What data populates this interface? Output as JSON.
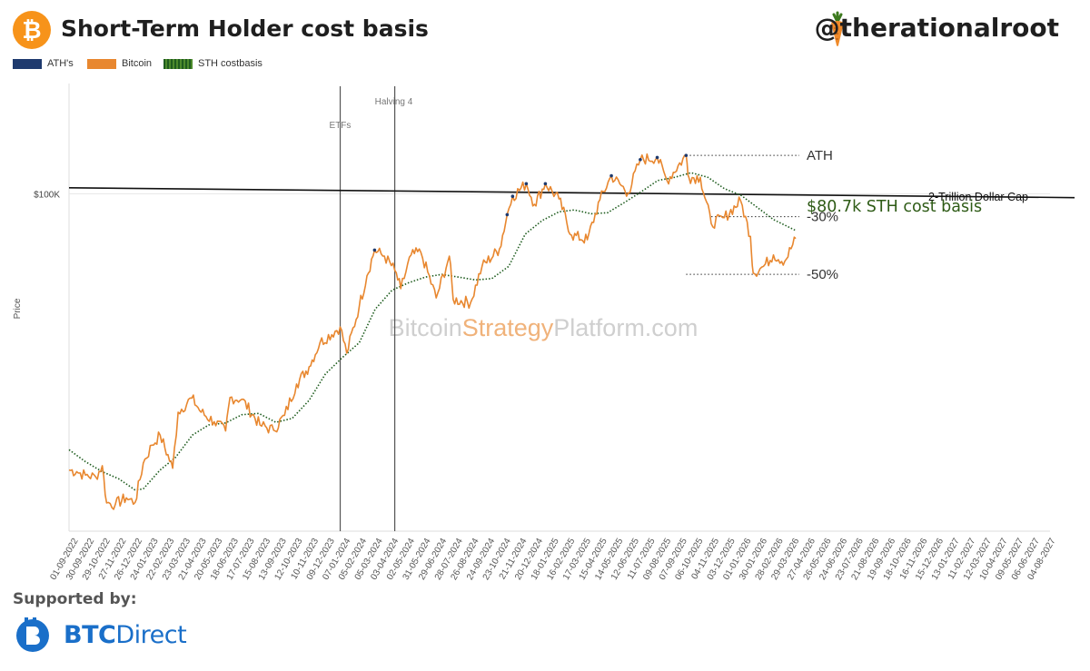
{
  "header": {
    "title": "Short-Term Holder cost basis",
    "author": "@therationalroot",
    "logo_icon": "bitcoin-icon",
    "author_icon": "carrot-icon"
  },
  "legend": [
    {
      "label": "ATH's",
      "color": "#1e3a6e"
    },
    {
      "label": "Bitcoin",
      "color": "#e8872f"
    },
    {
      "label": "STH costbasis",
      "color": "#1e5c1e"
    }
  ],
  "watermark": {
    "part1": "Bitcoin",
    "part2": "Strategy",
    "part3": "Platform.com",
    "accent": "#f0b27a",
    "base": "#cfcfcf"
  },
  "footer": {
    "supported_label": "Supported by:",
    "sponsor_bold": "BTC",
    "sponsor_light": "Direct",
    "sponsor_color": "#1a6fc9"
  },
  "chart_data": {
    "type": "line",
    "ylabel": "Price",
    "yscale": "log",
    "ylim": [
      14000,
      190000
    ],
    "y_ticks": [
      {
        "value": 100000,
        "label": "$100K"
      }
    ],
    "x_range": [
      "2022-09-01",
      "2027-08-04"
    ],
    "x_tick_labels": [
      "01-09-2022",
      "30-09-2022",
      "29-10-2022",
      "27-11-2022",
      "26-12-2022",
      "24-01-2023",
      "22-02-2023",
      "23-03-2023",
      "21-04-2023",
      "20-05-2023",
      "18-06-2023",
      "17-07-2023",
      "15-08-2023",
      "13-09-2023",
      "12-10-2023",
      "10-11-2023",
      "09-12-2023",
      "07-01-2024",
      "05-02-2024",
      "05-03-2024",
      "03-04-2024",
      "02-05-2024",
      "31-05-2024",
      "29-06-2024",
      "28-07-2024",
      "26-08-2024",
      "24-09-2024",
      "23-10-2024",
      "21-11-2024",
      "20-12-2024",
      "18-01-2025",
      "16-02-2025",
      "17-03-2025",
      "15-04-2025",
      "14-05-2025",
      "12-06-2025",
      "11-07-2025",
      "09-08-2025",
      "07-09-2025",
      "06-10-2025",
      "04-11-2025",
      "03-12-2025",
      "01-01-2026",
      "30-01-2026",
      "28-02-2026",
      "29-03-2026",
      "27-04-2026",
      "26-05-2026",
      "24-06-2026",
      "23-07-2026",
      "21-08-2026",
      "19-09-2026",
      "18-10-2026",
      "16-11-2026",
      "15-12-2026",
      "13-01-2027",
      "11-02-2027",
      "12-03-2027",
      "10-04-2027",
      "09-05-2027",
      "06-06-2027",
      "04-08-2027"
    ],
    "series": [
      {
        "name": "Bitcoin",
        "color": "#e8872f",
        "points": [
          [
            "2022-09-01",
            20000
          ],
          [
            "2022-09-15",
            19800
          ],
          [
            "2022-10-01",
            19400
          ],
          [
            "2022-10-20",
            19200
          ],
          [
            "2022-11-01",
            20500
          ],
          [
            "2022-11-09",
            16500
          ],
          [
            "2022-11-25",
            16400
          ],
          [
            "2022-12-15",
            17000
          ],
          [
            "2022-12-31",
            16550
          ],
          [
            "2023-01-15",
            20800
          ],
          [
            "2023-01-31",
            23100
          ],
          [
            "2023-02-15",
            24500
          ],
          [
            "2023-03-10",
            20200
          ],
          [
            "2023-03-20",
            28000
          ],
          [
            "2023-04-14",
            30400
          ],
          [
            "2023-05-01",
            28000
          ],
          [
            "2023-05-25",
            26500
          ],
          [
            "2023-06-15",
            25100
          ],
          [
            "2023-06-23",
            30500
          ],
          [
            "2023-07-15",
            30200
          ],
          [
            "2023-08-17",
            26000
          ],
          [
            "2023-09-11",
            25200
          ],
          [
            "2023-10-01",
            27500
          ],
          [
            "2023-10-23",
            33000
          ],
          [
            "2023-11-15",
            36500
          ],
          [
            "2023-12-05",
            42000
          ],
          [
            "2024-01-11",
            46000
          ],
          [
            "2024-01-23",
            39500
          ],
          [
            "2024-02-15",
            52000
          ],
          [
            "2024-02-29",
            62000
          ],
          [
            "2024-03-14",
            72000
          ],
          [
            "2024-04-01",
            69500
          ],
          [
            "2024-04-20",
            64000
          ],
          [
            "2024-05-01",
            57500
          ],
          [
            "2024-05-20",
            70000
          ],
          [
            "2024-06-07",
            71000
          ],
          [
            "2024-07-05",
            54500
          ],
          [
            "2024-07-29",
            69500
          ],
          [
            "2024-08-05",
            54000
          ],
          [
            "2024-09-06",
            53000
          ],
          [
            "2024-09-27",
            65500
          ],
          [
            "2024-10-29",
            72500
          ],
          [
            "2024-11-12",
            88500
          ],
          [
            "2024-11-22",
            98500
          ],
          [
            "2024-12-17",
            106000
          ],
          [
            "2025-01-01",
            94000
          ],
          [
            "2025-01-21",
            106000
          ],
          [
            "2025-02-15",
            97000
          ],
          [
            "2025-03-10",
            78500
          ],
          [
            "2025-04-08",
            76500
          ],
          [
            "2025-05-01",
            96500
          ],
          [
            "2025-05-22",
            111000
          ],
          [
            "2025-06-22",
            100500
          ],
          [
            "2025-07-14",
            122000
          ],
          [
            "2025-08-14",
            123500
          ],
          [
            "2025-09-01",
            108000
          ],
          [
            "2025-10-06",
            125000
          ],
          [
            "2025-10-11",
            110000
          ],
          [
            "2025-11-01",
            110000
          ],
          [
            "2025-11-21",
            84000
          ],
          [
            "2025-12-15",
            87000
          ],
          [
            "2026-01-14",
            96000
          ],
          [
            "2026-02-01",
            78000
          ],
          [
            "2026-02-06",
            63000
          ],
          [
            "2026-02-25",
            65500
          ],
          [
            "2026-03-15",
            70000
          ],
          [
            "2026-04-05",
            67500
          ],
          [
            "2026-04-25",
            77000
          ]
        ]
      },
      {
        "name": "STH costbasis",
        "color": "#1e5c1e",
        "points": [
          [
            "2022-09-01",
            22500
          ],
          [
            "2022-10-01",
            21000
          ],
          [
            "2022-11-01",
            19800
          ],
          [
            "2022-12-01",
            19000
          ],
          [
            "2022-12-31",
            17800
          ],
          [
            "2023-01-15",
            17900
          ],
          [
            "2023-02-15",
            20000
          ],
          [
            "2023-03-15",
            21500
          ],
          [
            "2023-04-15",
            24500
          ],
          [
            "2023-05-15",
            26000
          ],
          [
            "2023-06-15",
            26300
          ],
          [
            "2023-07-15",
            27600
          ],
          [
            "2023-08-15",
            27800
          ],
          [
            "2023-09-15",
            26400
          ],
          [
            "2023-10-15",
            27000
          ],
          [
            "2023-11-15",
            30000
          ],
          [
            "2023-12-15",
            35000
          ],
          [
            "2024-01-15",
            38500
          ],
          [
            "2024-02-15",
            42000
          ],
          [
            "2024-03-15",
            51000
          ],
          [
            "2024-04-15",
            57000
          ],
          [
            "2024-05-15",
            59500
          ],
          [
            "2024-06-15",
            61500
          ],
          [
            "2024-07-15",
            62500
          ],
          [
            "2024-08-15",
            61500
          ],
          [
            "2024-09-15",
            60500
          ],
          [
            "2024-10-15",
            61000
          ],
          [
            "2024-11-15",
            65500
          ],
          [
            "2024-12-15",
            79000
          ],
          [
            "2025-01-15",
            85500
          ],
          [
            "2025-02-15",
            90000
          ],
          [
            "2025-03-15",
            91000
          ],
          [
            "2025-04-15",
            89000
          ],
          [
            "2025-05-15",
            89500
          ],
          [
            "2025-06-15",
            95000
          ],
          [
            "2025-07-15",
            101000
          ],
          [
            "2025-08-15",
            108000
          ],
          [
            "2025-09-15",
            110000
          ],
          [
            "2025-10-15",
            113000
          ],
          [
            "2025-11-15",
            110000
          ],
          [
            "2025-12-15",
            103000
          ],
          [
            "2026-01-15",
            99000
          ],
          [
            "2026-02-15",
            92000
          ],
          [
            "2026-03-15",
            86000
          ],
          [
            "2026-04-25",
            80700
          ]
        ]
      }
    ],
    "ath_points": [
      [
        "2024-03-14",
        72000
      ],
      [
        "2024-11-12",
        88500
      ],
      [
        "2024-11-22",
        98500
      ],
      [
        "2024-12-17",
        106000
      ],
      [
        "2025-01-21",
        106000
      ],
      [
        "2025-05-22",
        111000
      ],
      [
        "2025-07-14",
        122000
      ],
      [
        "2025-08-14",
        123500
      ],
      [
        "2025-10-06",
        125000
      ]
    ],
    "vertical_markers": [
      {
        "date": "2024-01-11",
        "label": "ETFs"
      },
      {
        "date": "2024-04-20",
        "label": "Halving 4"
      }
    ],
    "cap_line": {
      "label": "2-Trillion Dollar Cap",
      "start": [
        "2022-09-01",
        103500
      ],
      "end": [
        "2027-08-04",
        98000
      ]
    },
    "reference_lines": [
      {
        "label": "ATH",
        "value": 125000,
        "from": "2025-10-06"
      },
      {
        "label": "-30%",
        "value": 87500,
        "from": "2025-11-21"
      },
      {
        "label": "-50%",
        "value": 62500,
        "from": "2025-10-06"
      }
    ],
    "callout": {
      "label": "$80.7k STH cost basis",
      "color": "#2e5b16"
    }
  }
}
